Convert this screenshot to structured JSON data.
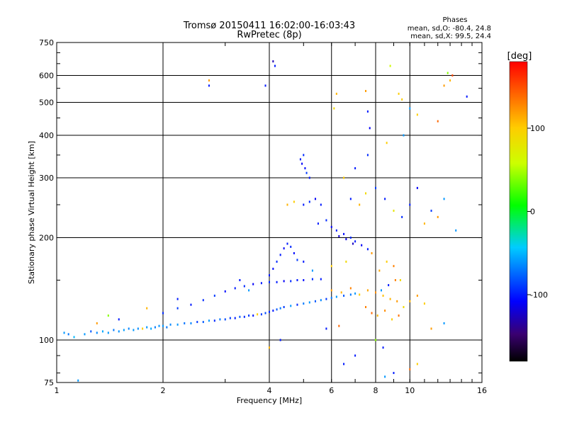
{
  "chart_data": {
    "type": "scatter",
    "title": "Tromsø 20150411 16:02:00-16:03:43",
    "subtitle": "RwPretec (8p)",
    "xlabel": "Frequency [MHz]",
    "ylabel": "Stationary phase Virtual Height [km]",
    "xscale": "log",
    "yscale": "log",
    "xlim": [
      1,
      16
    ],
    "ylim": [
      75,
      750
    ],
    "x_ticks": [
      {
        "value": 1,
        "label": "1"
      },
      {
        "value": 2,
        "label": "2"
      },
      {
        "value": 4,
        "label": "4"
      },
      {
        "value": 6,
        "label": "6"
      },
      {
        "value": 8,
        "label": "8"
      },
      {
        "value": 10,
        "label": "10"
      },
      {
        "value": 16,
        "label": "16"
      }
    ],
    "y_ticks": [
      {
        "value": 75,
        "label": "75"
      },
      {
        "value": 100,
        "label": "100"
      },
      {
        "value": 200,
        "label": "200"
      },
      {
        "value": 300,
        "label": "300"
      },
      {
        "value": 400,
        "label": "400"
      },
      {
        "value": 500,
        "label": "500"
      },
      {
        "value": 600,
        "label": "600"
      },
      {
        "value": 750,
        "label": "750"
      }
    ],
    "grid": true,
    "stats": {
      "heading": "Phases",
      "line_o": "mean, sd,O: -80.4, 24.8",
      "line_x": "mean, sd,X:  99.5, 24.4"
    },
    "colorbar": {
      "label": "[deg]",
      "range": [
        -180,
        180
      ],
      "ticks": [
        {
          "value": 100,
          "label": "100"
        },
        {
          "value": 0,
          "label": "0"
        },
        {
          "value": -100,
          "label": "-100"
        }
      ]
    },
    "points": [
      {
        "f": 1.05,
        "h": 105,
        "p": -60
      },
      {
        "f": 1.08,
        "h": 104,
        "p": -70
      },
      {
        "f": 1.12,
        "h": 102,
        "p": -50
      },
      {
        "f": 1.2,
        "h": 104,
        "p": -60
      },
      {
        "f": 1.25,
        "h": 106,
        "p": -80
      },
      {
        "f": 1.3,
        "h": 105,
        "p": -65
      },
      {
        "f": 1.35,
        "h": 106,
        "p": -55
      },
      {
        "f": 1.4,
        "h": 105,
        "p": -60
      },
      {
        "f": 1.45,
        "h": 107,
        "p": -70
      },
      {
        "f": 1.5,
        "h": 106,
        "p": -62
      },
      {
        "f": 1.55,
        "h": 107,
        "p": -58
      },
      {
        "f": 1.6,
        "h": 108,
        "p": -66
      },
      {
        "f": 1.65,
        "h": 107,
        "p": -60
      },
      {
        "f": 1.7,
        "h": 108,
        "p": -64
      },
      {
        "f": 1.75,
        "h": 108,
        "p": 100
      },
      {
        "f": 1.8,
        "h": 109,
        "p": -60
      },
      {
        "f": 1.85,
        "h": 108,
        "p": -55
      },
      {
        "f": 1.9,
        "h": 109,
        "p": -68
      },
      {
        "f": 1.95,
        "h": 110,
        "p": -62
      },
      {
        "f": 2.0,
        "h": 110,
        "p": -60
      },
      {
        "f": 2.05,
        "h": 109,
        "p": -70
      },
      {
        "f": 2.1,
        "h": 111,
        "p": -65
      },
      {
        "f": 2.2,
        "h": 111,
        "p": -60
      },
      {
        "f": 2.3,
        "h": 112,
        "p": -72
      },
      {
        "f": 2.4,
        "h": 112,
        "p": -66
      },
      {
        "f": 2.5,
        "h": 113,
        "p": -90
      },
      {
        "f": 2.6,
        "h": 113,
        "p": -80
      },
      {
        "f": 2.7,
        "h": 114,
        "p": -60
      },
      {
        "f": 2.8,
        "h": 114,
        "p": -95
      },
      {
        "f": 2.9,
        "h": 115,
        "p": -70
      },
      {
        "f": 3.0,
        "h": 115,
        "p": -85
      },
      {
        "f": 3.1,
        "h": 116,
        "p": -90
      },
      {
        "f": 3.2,
        "h": 116,
        "p": -100
      },
      {
        "f": 3.3,
        "h": 117,
        "p": -80
      },
      {
        "f": 3.4,
        "h": 117,
        "p": -95
      },
      {
        "f": 3.5,
        "h": 118,
        "p": -90
      },
      {
        "f": 3.6,
        "h": 118,
        "p": -100
      },
      {
        "f": 3.7,
        "h": 119,
        "p": 100
      },
      {
        "f": 3.8,
        "h": 119,
        "p": -90
      },
      {
        "f": 3.9,
        "h": 120,
        "p": -85
      },
      {
        "f": 4.0,
        "h": 121,
        "p": -95
      },
      {
        "f": 4.1,
        "h": 122,
        "p": -100
      },
      {
        "f": 4.2,
        "h": 123,
        "p": -80
      },
      {
        "f": 4.3,
        "h": 124,
        "p": -70
      },
      {
        "f": 4.4,
        "h": 125,
        "p": -90
      },
      {
        "f": 4.6,
        "h": 126,
        "p": -60
      },
      {
        "f": 4.8,
        "h": 127,
        "p": -95
      },
      {
        "f": 5.0,
        "h": 128,
        "p": -70
      },
      {
        "f": 5.2,
        "h": 129,
        "p": -60
      },
      {
        "f": 5.4,
        "h": 130,
        "p": -80
      },
      {
        "f": 5.6,
        "h": 131,
        "p": -65
      },
      {
        "f": 5.8,
        "h": 132,
        "p": -90
      },
      {
        "f": 6.0,
        "h": 133,
        "p": -70
      },
      {
        "f": 6.2,
        "h": 134,
        "p": -60
      },
      {
        "f": 6.5,
        "h": 135,
        "p": -80
      },
      {
        "f": 6.8,
        "h": 136,
        "p": -70
      },
      {
        "f": 7.0,
        "h": 137,
        "p": -60
      },
      {
        "f": 2.0,
        "h": 120,
        "p": -95
      },
      {
        "f": 2.2,
        "h": 124,
        "p": -90
      },
      {
        "f": 2.4,
        "h": 127,
        "p": -100
      },
      {
        "f": 2.6,
        "h": 131,
        "p": -95
      },
      {
        "f": 2.8,
        "h": 135,
        "p": -90
      },
      {
        "f": 3.0,
        "h": 139,
        "p": -105
      },
      {
        "f": 3.2,
        "h": 142,
        "p": -100
      },
      {
        "f": 3.4,
        "h": 144,
        "p": -95
      },
      {
        "f": 3.6,
        "h": 146,
        "p": -110
      },
      {
        "f": 3.8,
        "h": 147,
        "p": -100
      },
      {
        "f": 4.0,
        "h": 148,
        "p": -95
      },
      {
        "f": 4.2,
        "h": 148,
        "p": -100
      },
      {
        "f": 4.4,
        "h": 149,
        "p": -110
      },
      {
        "f": 4.6,
        "h": 149,
        "p": -95
      },
      {
        "f": 4.8,
        "h": 150,
        "p": -100
      },
      {
        "f": 5.0,
        "h": 150,
        "p": -105
      },
      {
        "f": 5.3,
        "h": 151,
        "p": -95
      },
      {
        "f": 5.6,
        "h": 151,
        "p": -100
      },
      {
        "f": 4.0,
        "h": 155,
        "p": -100
      },
      {
        "f": 4.1,
        "h": 162,
        "p": -105
      },
      {
        "f": 4.2,
        "h": 170,
        "p": -95
      },
      {
        "f": 4.3,
        "h": 178,
        "p": -100
      },
      {
        "f": 4.4,
        "h": 186,
        "p": -110
      },
      {
        "f": 4.5,
        "h": 192,
        "p": -100
      },
      {
        "f": 4.6,
        "h": 188,
        "p": -95
      },
      {
        "f": 4.7,
        "h": 180,
        "p": -105
      },
      {
        "f": 4.8,
        "h": 172,
        "p": -90
      },
      {
        "f": 4.9,
        "h": 340,
        "p": -100
      },
      {
        "f": 4.95,
        "h": 330,
        "p": -110
      },
      {
        "f": 5.0,
        "h": 350,
        "p": -95
      },
      {
        "f": 5.05,
        "h": 320,
        "p": -105
      },
      {
        "f": 5.1,
        "h": 310,
        "p": -90
      },
      {
        "f": 5.2,
        "h": 300,
        "p": -100
      },
      {
        "f": 5.0,
        "h": 250,
        "p": -100
      },
      {
        "f": 5.2,
        "h": 255,
        "p": -95
      },
      {
        "f": 5.4,
        "h": 260,
        "p": -110
      },
      {
        "f": 5.6,
        "h": 250,
        "p": -100
      },
      {
        "f": 4.5,
        "h": 250,
        "p": 110
      },
      {
        "f": 4.7,
        "h": 255,
        "p": 100
      },
      {
        "f": 5.5,
        "h": 220,
        "p": -100
      },
      {
        "f": 5.8,
        "h": 225,
        "p": -95
      },
      {
        "f": 6.0,
        "h": 215,
        "p": -110
      },
      {
        "f": 6.2,
        "h": 210,
        "p": -100
      },
      {
        "f": 6.5,
        "h": 205,
        "p": -105
      },
      {
        "f": 6.8,
        "h": 200,
        "p": -95
      },
      {
        "f": 7.0,
        "h": 195,
        "p": -100
      },
      {
        "f": 7.3,
        "h": 190,
        "p": -110
      },
      {
        "f": 7.6,
        "h": 185,
        "p": -100
      },
      {
        "f": 6.3,
        "h": 202,
        "p": -120
      },
      {
        "f": 6.6,
        "h": 198,
        "p": -115
      },
      {
        "f": 6.9,
        "h": 192,
        "p": -125
      },
      {
        "f": 6.0,
        "h": 140,
        "p": 120
      },
      {
        "f": 6.4,
        "h": 138,
        "p": 110
      },
      {
        "f": 6.8,
        "h": 142,
        "p": 130
      },
      {
        "f": 7.2,
        "h": 136,
        "p": 100
      },
      {
        "f": 7.6,
        "h": 140,
        "p": 115
      },
      {
        "f": 8.0,
        "h": 138,
        "p": 125
      },
      {
        "f": 8.4,
        "h": 135,
        "p": 105
      },
      {
        "f": 8.8,
        "h": 132,
        "p": 110
      },
      {
        "f": 9.2,
        "h": 130,
        "p": 120
      },
      {
        "f": 7.5,
        "h": 125,
        "p": 130
      },
      {
        "f": 7.8,
        "h": 120,
        "p": 140
      },
      {
        "f": 8.1,
        "h": 118,
        "p": 110
      },
      {
        "f": 8.5,
        "h": 122,
        "p": 125
      },
      {
        "f": 8.9,
        "h": 115,
        "p": 100
      },
      {
        "f": 9.3,
        "h": 118,
        "p": 135
      },
      {
        "f": 9.6,
        "h": 125,
        "p": 90
      },
      {
        "f": 10.0,
        "h": 130,
        "p": 110
      },
      {
        "f": 10.5,
        "h": 135,
        "p": 120
      },
      {
        "f": 11.0,
        "h": 128,
        "p": 100
      },
      {
        "f": 8.2,
        "h": 160,
        "p": 115
      },
      {
        "f": 8.6,
        "h": 170,
        "p": 100
      },
      {
        "f": 9.0,
        "h": 165,
        "p": 130
      },
      {
        "f": 9.4,
        "h": 150,
        "p": 90
      },
      {
        "f": 7.8,
        "h": 180,
        "p": 120
      },
      {
        "f": 7.2,
        "h": 250,
        "p": 110
      },
      {
        "f": 7.5,
        "h": 270,
        "p": 90
      },
      {
        "f": 6.8,
        "h": 260,
        "p": -100
      },
      {
        "f": 8.0,
        "h": 280,
        "p": -90
      },
      {
        "f": 8.5,
        "h": 260,
        "p": -100
      },
      {
        "f": 9.0,
        "h": 240,
        "p": 80
      },
      {
        "f": 9.5,
        "h": 230,
        "p": -95
      },
      {
        "f": 10.0,
        "h": 250,
        "p": -100
      },
      {
        "f": 10.5,
        "h": 280,
        "p": -110
      },
      {
        "f": 11.0,
        "h": 220,
        "p": 110
      },
      {
        "f": 11.5,
        "h": 240,
        "p": -90
      },
      {
        "f": 12.0,
        "h": 230,
        "p": 120
      },
      {
        "f": 12.5,
        "h": 260,
        "p": -60
      },
      {
        "f": 13.5,
        "h": 210,
        "p": -60
      },
      {
        "f": 6.5,
        "h": 300,
        "p": 100
      },
      {
        "f": 7.0,
        "h": 320,
        "p": -100
      },
      {
        "f": 7.6,
        "h": 350,
        "p": -95
      },
      {
        "f": 8.6,
        "h": 380,
        "p": 100
      },
      {
        "f": 9.6,
        "h": 400,
        "p": -60
      },
      {
        "f": 10.5,
        "h": 460,
        "p": 100
      },
      {
        "f": 12.0,
        "h": 440,
        "p": 140
      },
      {
        "f": 6.1,
        "h": 480,
        "p": 90
      },
      {
        "f": 6.2,
        "h": 530,
        "p": 110
      },
      {
        "f": 7.5,
        "h": 540,
        "p": 120
      },
      {
        "f": 7.6,
        "h": 470,
        "p": -100
      },
      {
        "f": 7.7,
        "h": 420,
        "p": -110
      },
      {
        "f": 9.3,
        "h": 530,
        "p": 100
      },
      {
        "f": 9.5,
        "h": 510,
        "p": 100
      },
      {
        "f": 10.0,
        "h": 480,
        "p": -60
      },
      {
        "f": 12.5,
        "h": 560,
        "p": 120
      },
      {
        "f": 13.0,
        "h": 580,
        "p": 110
      },
      {
        "f": 14.5,
        "h": 520,
        "p": -100
      },
      {
        "f": 12.8,
        "h": 610,
        "p": 40
      },
      {
        "f": 13.2,
        "h": 600,
        "p": 150
      },
      {
        "f": 8.8,
        "h": 640,
        "p": 60
      },
      {
        "f": 4.1,
        "h": 660,
        "p": -130
      },
      {
        "f": 4.15,
        "h": 640,
        "p": -100
      },
      {
        "f": 3.9,
        "h": 560,
        "p": -100
      },
      {
        "f": 2.7,
        "h": 560,
        "p": -100
      },
      {
        "f": 2.7,
        "h": 580,
        "p": 120
      },
      {
        "f": 8.3,
        "h": 140,
        "p": -60
      },
      {
        "f": 8.7,
        "h": 145,
        "p": -100
      },
      {
        "f": 9.1,
        "h": 150,
        "p": 130
      },
      {
        "f": 8.0,
        "h": 100,
        "p": 40
      },
      {
        "f": 8.4,
        "h": 95,
        "p": -100
      },
      {
        "f": 7.0,
        "h": 90,
        "p": -100
      },
      {
        "f": 6.5,
        "h": 85,
        "p": -100
      },
      {
        "f": 10.5,
        "h": 85,
        "p": 100
      },
      {
        "f": 10.0,
        "h": 82,
        "p": 140
      },
      {
        "f": 9.0,
        "h": 80,
        "p": -100
      },
      {
        "f": 8.5,
        "h": 78,
        "p": -60
      },
      {
        "f": 4.0,
        "h": 95,
        "p": 110
      },
      {
        "f": 4.3,
        "h": 100,
        "p": -100
      },
      {
        "f": 1.15,
        "h": 76,
        "p": -60
      },
      {
        "f": 6.3,
        "h": 110,
        "p": 140
      },
      {
        "f": 5.8,
        "h": 108,
        "p": -100
      },
      {
        "f": 11.5,
        "h": 108,
        "p": 120
      },
      {
        "f": 12.5,
        "h": 112,
        "p": -60
      },
      {
        "f": 6.0,
        "h": 165,
        "p": 100
      },
      {
        "f": 6.6,
        "h": 170,
        "p": 90
      },
      {
        "f": 5.0,
        "h": 170,
        "p": -100
      },
      {
        "f": 5.3,
        "h": 160,
        "p": -60
      },
      {
        "f": 3.3,
        "h": 150,
        "p": -100
      },
      {
        "f": 3.5,
        "h": 140,
        "p": -60
      },
      {
        "f": 2.2,
        "h": 132,
        "p": -100
      },
      {
        "f": 1.8,
        "h": 124,
        "p": 110
      },
      {
        "f": 1.5,
        "h": 115,
        "p": -100
      },
      {
        "f": 1.4,
        "h": 118,
        "p": 40
      },
      {
        "f": 1.3,
        "h": 112,
        "p": 120
      }
    ]
  }
}
